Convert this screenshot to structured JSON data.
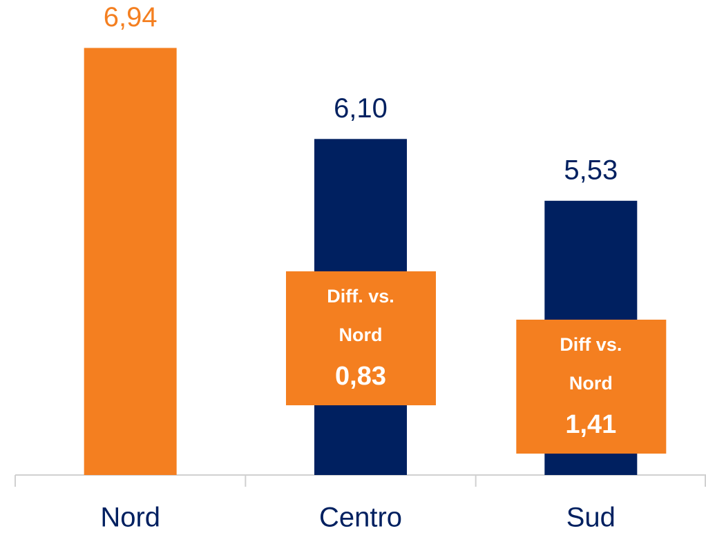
{
  "chart_data": {
    "type": "bar",
    "categories": [
      "Nord",
      "Centro",
      "Sud"
    ],
    "values": [
      6.94,
      6.1,
      5.53
    ],
    "value_labels": [
      "6,94",
      "6,10",
      "5,53"
    ],
    "colors": [
      "#f47f20",
      "#002060",
      "#002060"
    ],
    "ylim": [
      3,
      7
    ],
    "annotations": [
      {
        "category": 1,
        "lines": [
          "Diff. vs.",
          "Nord"
        ],
        "text": "0,83"
      },
      {
        "category": 2,
        "lines": [
          "Diff vs.",
          "Nord"
        ],
        "text": "1,41"
      }
    ]
  }
}
